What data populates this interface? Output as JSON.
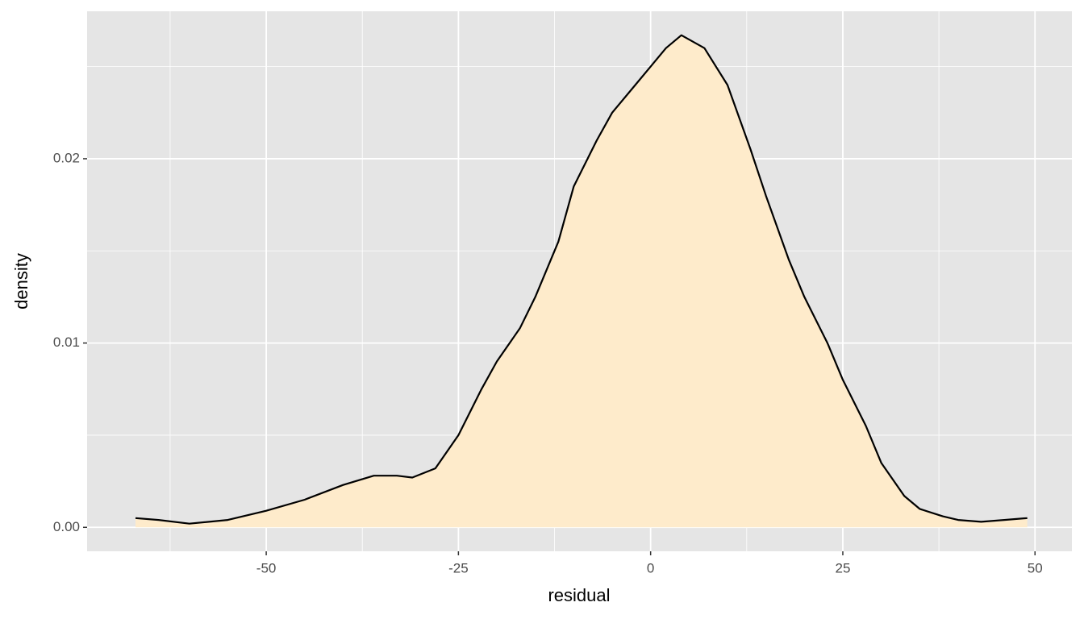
{
  "chart_data": {
    "type": "density",
    "x_label": "residual",
    "y_label": "density",
    "x": [
      -67,
      -64,
      -60,
      -55,
      -50,
      -45,
      -40,
      -36,
      -33,
      -31,
      -28,
      -25,
      -22,
      -20,
      -17,
      -15,
      -12,
      -10,
      -7,
      -5,
      -2,
      0,
      2,
      4,
      7,
      10,
      13,
      15,
      18,
      20,
      23,
      25,
      28,
      30,
      33,
      35,
      38,
      40,
      43,
      46,
      49
    ],
    "values": [
      0.0005,
      0.0004,
      0.0002,
      0.0004,
      0.0009,
      0.0015,
      0.0023,
      0.0028,
      0.0028,
      0.0027,
      0.0032,
      0.005,
      0.0075,
      0.009,
      0.0108,
      0.0125,
      0.0155,
      0.0185,
      0.021,
      0.0225,
      0.024,
      0.025,
      0.026,
      0.0267,
      0.026,
      0.024,
      0.0205,
      0.018,
      0.0145,
      0.0125,
      0.01,
      0.008,
      0.0055,
      0.0035,
      0.0017,
      0.001,
      0.0006,
      0.0004,
      0.0003,
      0.0004,
      0.0005
    ],
    "fill": "#feebcb",
    "line_color": "#000000",
    "xlim": [
      -73.3,
      54.8
    ],
    "ylim": [
      -0.0013,
      0.028
    ],
    "xticks": [
      -50,
      -25,
      0,
      25,
      50
    ],
    "yticks": [
      {
        "value": 0,
        "label": "0.00"
      },
      {
        "value": 0.01,
        "label": "0.01"
      },
      {
        "value": 0.02,
        "label": "0.02"
      }
    ],
    "grid": true
  }
}
